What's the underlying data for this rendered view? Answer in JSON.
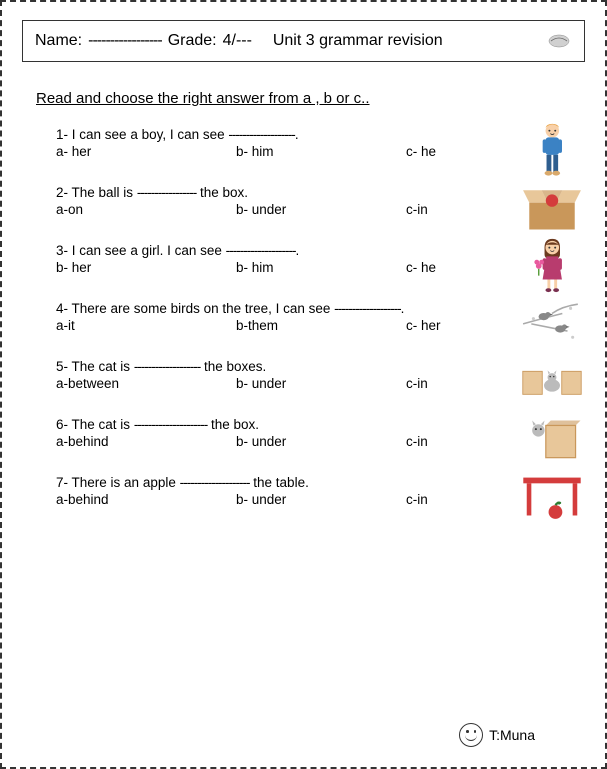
{
  "header": {
    "name_label": "Name:",
    "name_dashes": "-----------------",
    "grade_label": "Grade:",
    "grade_value": "4/---",
    "title": "Unit 3 grammar revision"
  },
  "instruction": "Read and choose the right answer from a , b or c..",
  "questions": [
    {
      "num": "1-",
      "stem_pre": "I can see a boy, I can see ",
      "stem_dash": "-------------------",
      "stem_post": ".",
      "a": "a- her",
      "b": "b- him",
      "c": "c- he",
      "icon": "boy"
    },
    {
      "num": "2-",
      "stem_pre": "The ball is ",
      "stem_dash": "-----------------",
      "stem_post": " the box.",
      "a": "a-on",
      "b": "b- under",
      "c": "c-in",
      "icon": "box-ball"
    },
    {
      "num": "3-",
      "stem_pre": "I can see a girl. I can see ",
      "stem_dash": "--------------------",
      "stem_post": ".",
      "a": "b- her",
      "b": "b- him",
      "c": "c- he",
      "icon": "girl"
    },
    {
      "num": "4-",
      "stem_pre": "There are some birds on the tree, I can see ",
      "stem_dash": "-------------------",
      "stem_post": ".",
      "a": "a-it",
      "b": "b-them",
      "c": "c- her",
      "icon": "birds"
    },
    {
      "num": "5-",
      "stem_pre": "The cat is ",
      "stem_dash": "-------------------",
      "stem_post": " the boxes.",
      "a": "a-between",
      "b": "b- under",
      "c": "c-in",
      "icon": "cat-between"
    },
    {
      "num": "6-",
      "stem_pre": "The cat is ",
      "stem_dash": "---------------------",
      "stem_post": " the box.",
      "a": "a-behind",
      "b": "b- under",
      "c": "c-in",
      "icon": "cat-behind"
    },
    {
      "num": "7-",
      "stem_pre": "There is an apple ",
      "stem_dash": "--------------------",
      "stem_post": " the table.",
      "a": "a-behind",
      "b": "b- under",
      "c": "c-in",
      "icon": "table-apple"
    }
  ],
  "footer": {
    "teacher": "T:Muna"
  },
  "colors": {
    "boy_shirt": "#3b82c4",
    "boy_pants": "#2e5e8f",
    "boy_skin": "#f8d0a8",
    "boy_hair": "#e8a54a",
    "box": "#c9975a",
    "box_light": "#e8c79a",
    "ball": "#d43c3c",
    "girl_dress": "#b83c6e",
    "girl_hair": "#6b3a1e",
    "girl_skin": "#f8d0a8",
    "flower_pink": "#e85a9e",
    "flower_green": "#5a9e3c",
    "bird_gray": "#888",
    "branch": "#aaa",
    "cat": "#bbb",
    "table_top": "#d43c3c",
    "table_leg": "#d43c3c",
    "apple": "#d43c3c",
    "apple_leaf": "#2e7d32"
  }
}
